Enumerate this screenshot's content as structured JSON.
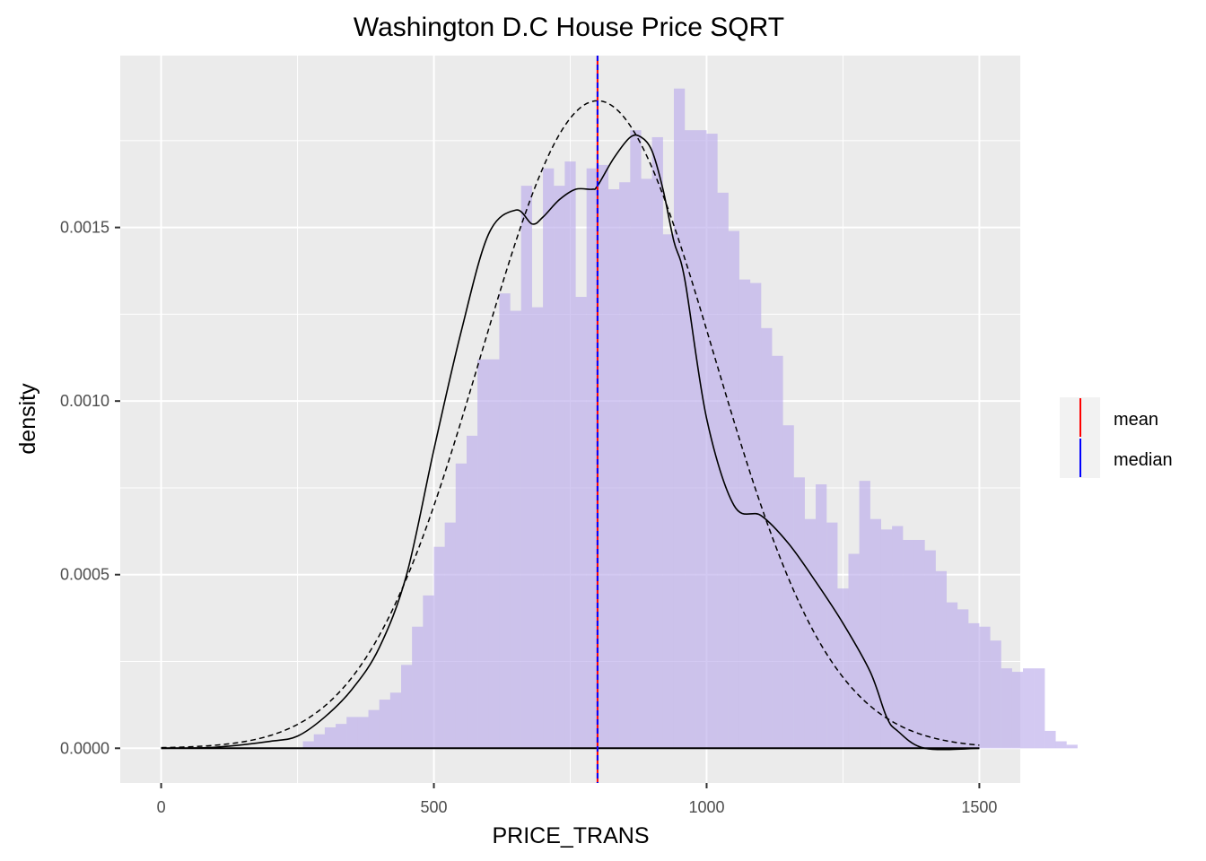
{
  "chart_data": {
    "type": "histogram",
    "title": "Washington D.C House Price SQRT",
    "xlabel": "PRICE_TRANS",
    "ylabel": "density",
    "xlim": [
      -75,
      1575
    ],
    "ylim": [
      -0.0001,
      0.001995
    ],
    "x_ticks": [
      0,
      500,
      1000,
      1500
    ],
    "x_tick_labels": [
      "0",
      "500",
      "1000",
      "1500"
    ],
    "y_ticks": [
      0,
      0.0005,
      0.001,
      0.0015
    ],
    "y_tick_labels": [
      "0.0000",
      "0.0005",
      "0.0010",
      "0.0015"
    ],
    "grid": true,
    "bins": {
      "start": 0,
      "width": 20,
      "density": [
        0,
        0,
        0,
        0,
        0,
        0,
        0,
        0,
        0,
        0,
        0,
        0,
        0,
        2e-05,
        4e-05,
        6e-05,
        7e-05,
        9e-05,
        9e-05,
        0.00011,
        0.00014,
        0.00016,
        0.00024,
        0.00035,
        0.00044,
        0.00058,
        0.00065,
        0.00082,
        0.0009,
        0.00112,
        0.00112,
        0.00131,
        0.00126,
        0.00162,
        0.00127,
        0.00167,
        0.00162,
        0.00169,
        0.0013,
        0.00167,
        0.00168,
        0.00161,
        0.00163,
        0.00178,
        0.00164,
        0.00176,
        0.00148,
        0.0019,
        0.00178,
        0.00178,
        0.00177,
        0.0016,
        0.00149,
        0.00135,
        0.00134,
        0.00121,
        0.00113,
        0.00093,
        0.00078,
        0.00066,
        0.00076,
        0.00065,
        0.00046,
        0.00056,
        0.00077,
        0.00066,
        0.00063,
        0.00064,
        0.0006,
        0.0006,
        0.00057,
        0.00051,
        0.00042,
        0.0004,
        0.00036,
        0.00035,
        0.00031,
        0.00023,
        0.00022,
        0.00023,
        0.00023,
        5e-05,
        2e-05,
        1e-05,
        0,
        0,
        0,
        0,
        0
      ],
      "fill_color": "#7b7bf0",
      "overlay_color": "#ffdde6"
    },
    "density_kde": {
      "x": [
        0,
        100,
        200,
        250,
        300,
        350,
        400,
        450,
        500,
        550,
        600,
        650,
        680,
        700,
        730,
        760,
        790,
        800,
        830,
        860,
        880,
        900,
        920,
        940,
        960,
        1000,
        1050,
        1100,
        1150,
        1200,
        1250,
        1300,
        1330,
        1350,
        1400,
        1500
      ],
      "y": [
        0.0,
        3e-06,
        2e-05,
        3.5e-05,
        9e-05,
        0.00017,
        0.00029,
        0.0005,
        0.00086,
        0.0012,
        0.00148,
        0.00155,
        0.00151,
        0.00153,
        0.00158,
        0.00161,
        0.00161,
        0.00162,
        0.0017,
        0.00176,
        0.00176,
        0.00172,
        0.00161,
        0.00146,
        0.00135,
        0.00095,
        0.0007,
        0.00067,
        0.00059,
        0.00048,
        0.00036,
        0.00022,
        9e-05,
        5e-05,
        0.0,
        0.0
      ],
      "color": "#000000",
      "style": "solid"
    },
    "normal_fit": {
      "mean": 800,
      "sd": 214,
      "peak_density": 0.001865,
      "xrange": [
        0,
        1500
      ],
      "color": "#000000",
      "style": "dashed"
    },
    "vlines": [
      {
        "name": "mean",
        "x": 800,
        "color": "#ff0000"
      },
      {
        "name": "median",
        "x": 800,
        "color": "#0000ff"
      }
    ],
    "legend": {
      "placement": "right",
      "entries": [
        {
          "label": "mean",
          "color": "#ff0000"
        },
        {
          "label": "median",
          "color": "#0000ff"
        }
      ]
    },
    "panel_background": "#ebebeb",
    "grid_color": "#ffffff"
  }
}
